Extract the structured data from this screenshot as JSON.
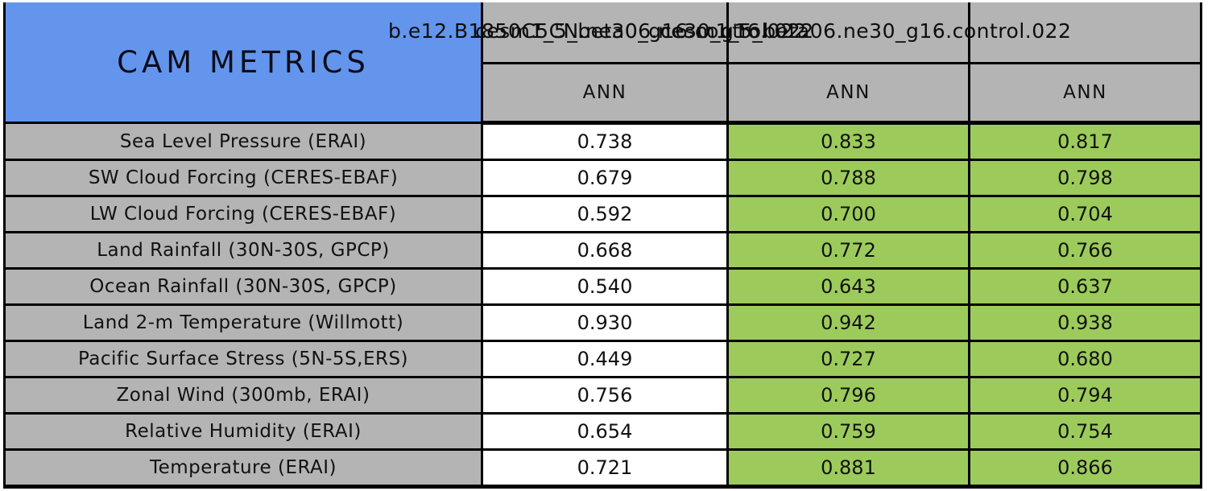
{
  "chart_data": {
    "type": "table",
    "title": "CAM METRICS",
    "header_runs": [
      "b.e12.B1850C5CN.ne30_g16.control.022",
      "cesm1_5_beta06.ne30_g16.022",
      "cesm1_5_beta06.ne30_g16.control.022"
    ],
    "header_runs_note": "three run-name strings drawn overlapping; legible fragments: 'b.e12.B18', '.ne30_g16.control.022'",
    "column_headers": [
      "ANN",
      "ANN",
      "ANN"
    ],
    "rows": [
      {
        "metric": "Sea Level Pressure (ERAI)",
        "values": [
          "0.738",
          "0.833",
          "0.817"
        ]
      },
      {
        "metric": "SW Cloud Forcing (CERES-EBAF)",
        "values": [
          "0.679",
          "0.788",
          "0.798"
        ]
      },
      {
        "metric": "LW Cloud Forcing (CERES-EBAF)",
        "values": [
          "0.592",
          "0.700",
          "0.704"
        ]
      },
      {
        "metric": "Land Rainfall (30N-30S, GPCP)",
        "values": [
          "0.668",
          "0.772",
          "0.766"
        ]
      },
      {
        "metric": "Ocean Rainfall (30N-30S, GPCP)",
        "values": [
          "0.540",
          "0.643",
          "0.637"
        ]
      },
      {
        "metric": "Land 2-m Temperature (Willmott)",
        "values": [
          "0.930",
          "0.942",
          "0.938"
        ]
      },
      {
        "metric": "Pacific Surface Stress (5N-5S,ERS)",
        "values": [
          "0.449",
          "0.727",
          "0.680"
        ]
      },
      {
        "metric": "Zonal Wind (300mb, ERAI)",
        "values": [
          "0.756",
          "0.796",
          "0.794"
        ]
      },
      {
        "metric": "Relative Humidity (ERAI)",
        "values": [
          "0.654",
          "0.759",
          "0.754"
        ]
      },
      {
        "metric": "Temperature (ERAI)",
        "values": [
          "0.721",
          "0.881",
          "0.866"
        ]
      }
    ],
    "colors": {
      "title_bg": "#6495ED",
      "header_bg": "#B4B4B4",
      "label_bg": "#B4B4B4",
      "baseline_value_bg": "#FFFFFF",
      "improved_value_bg": "#9CCB5B",
      "border": "#000000"
    },
    "layout": {
      "value_columns": 3,
      "baseline_column_index": 0,
      "green_column_indexes": [
        1,
        2
      ]
    }
  }
}
